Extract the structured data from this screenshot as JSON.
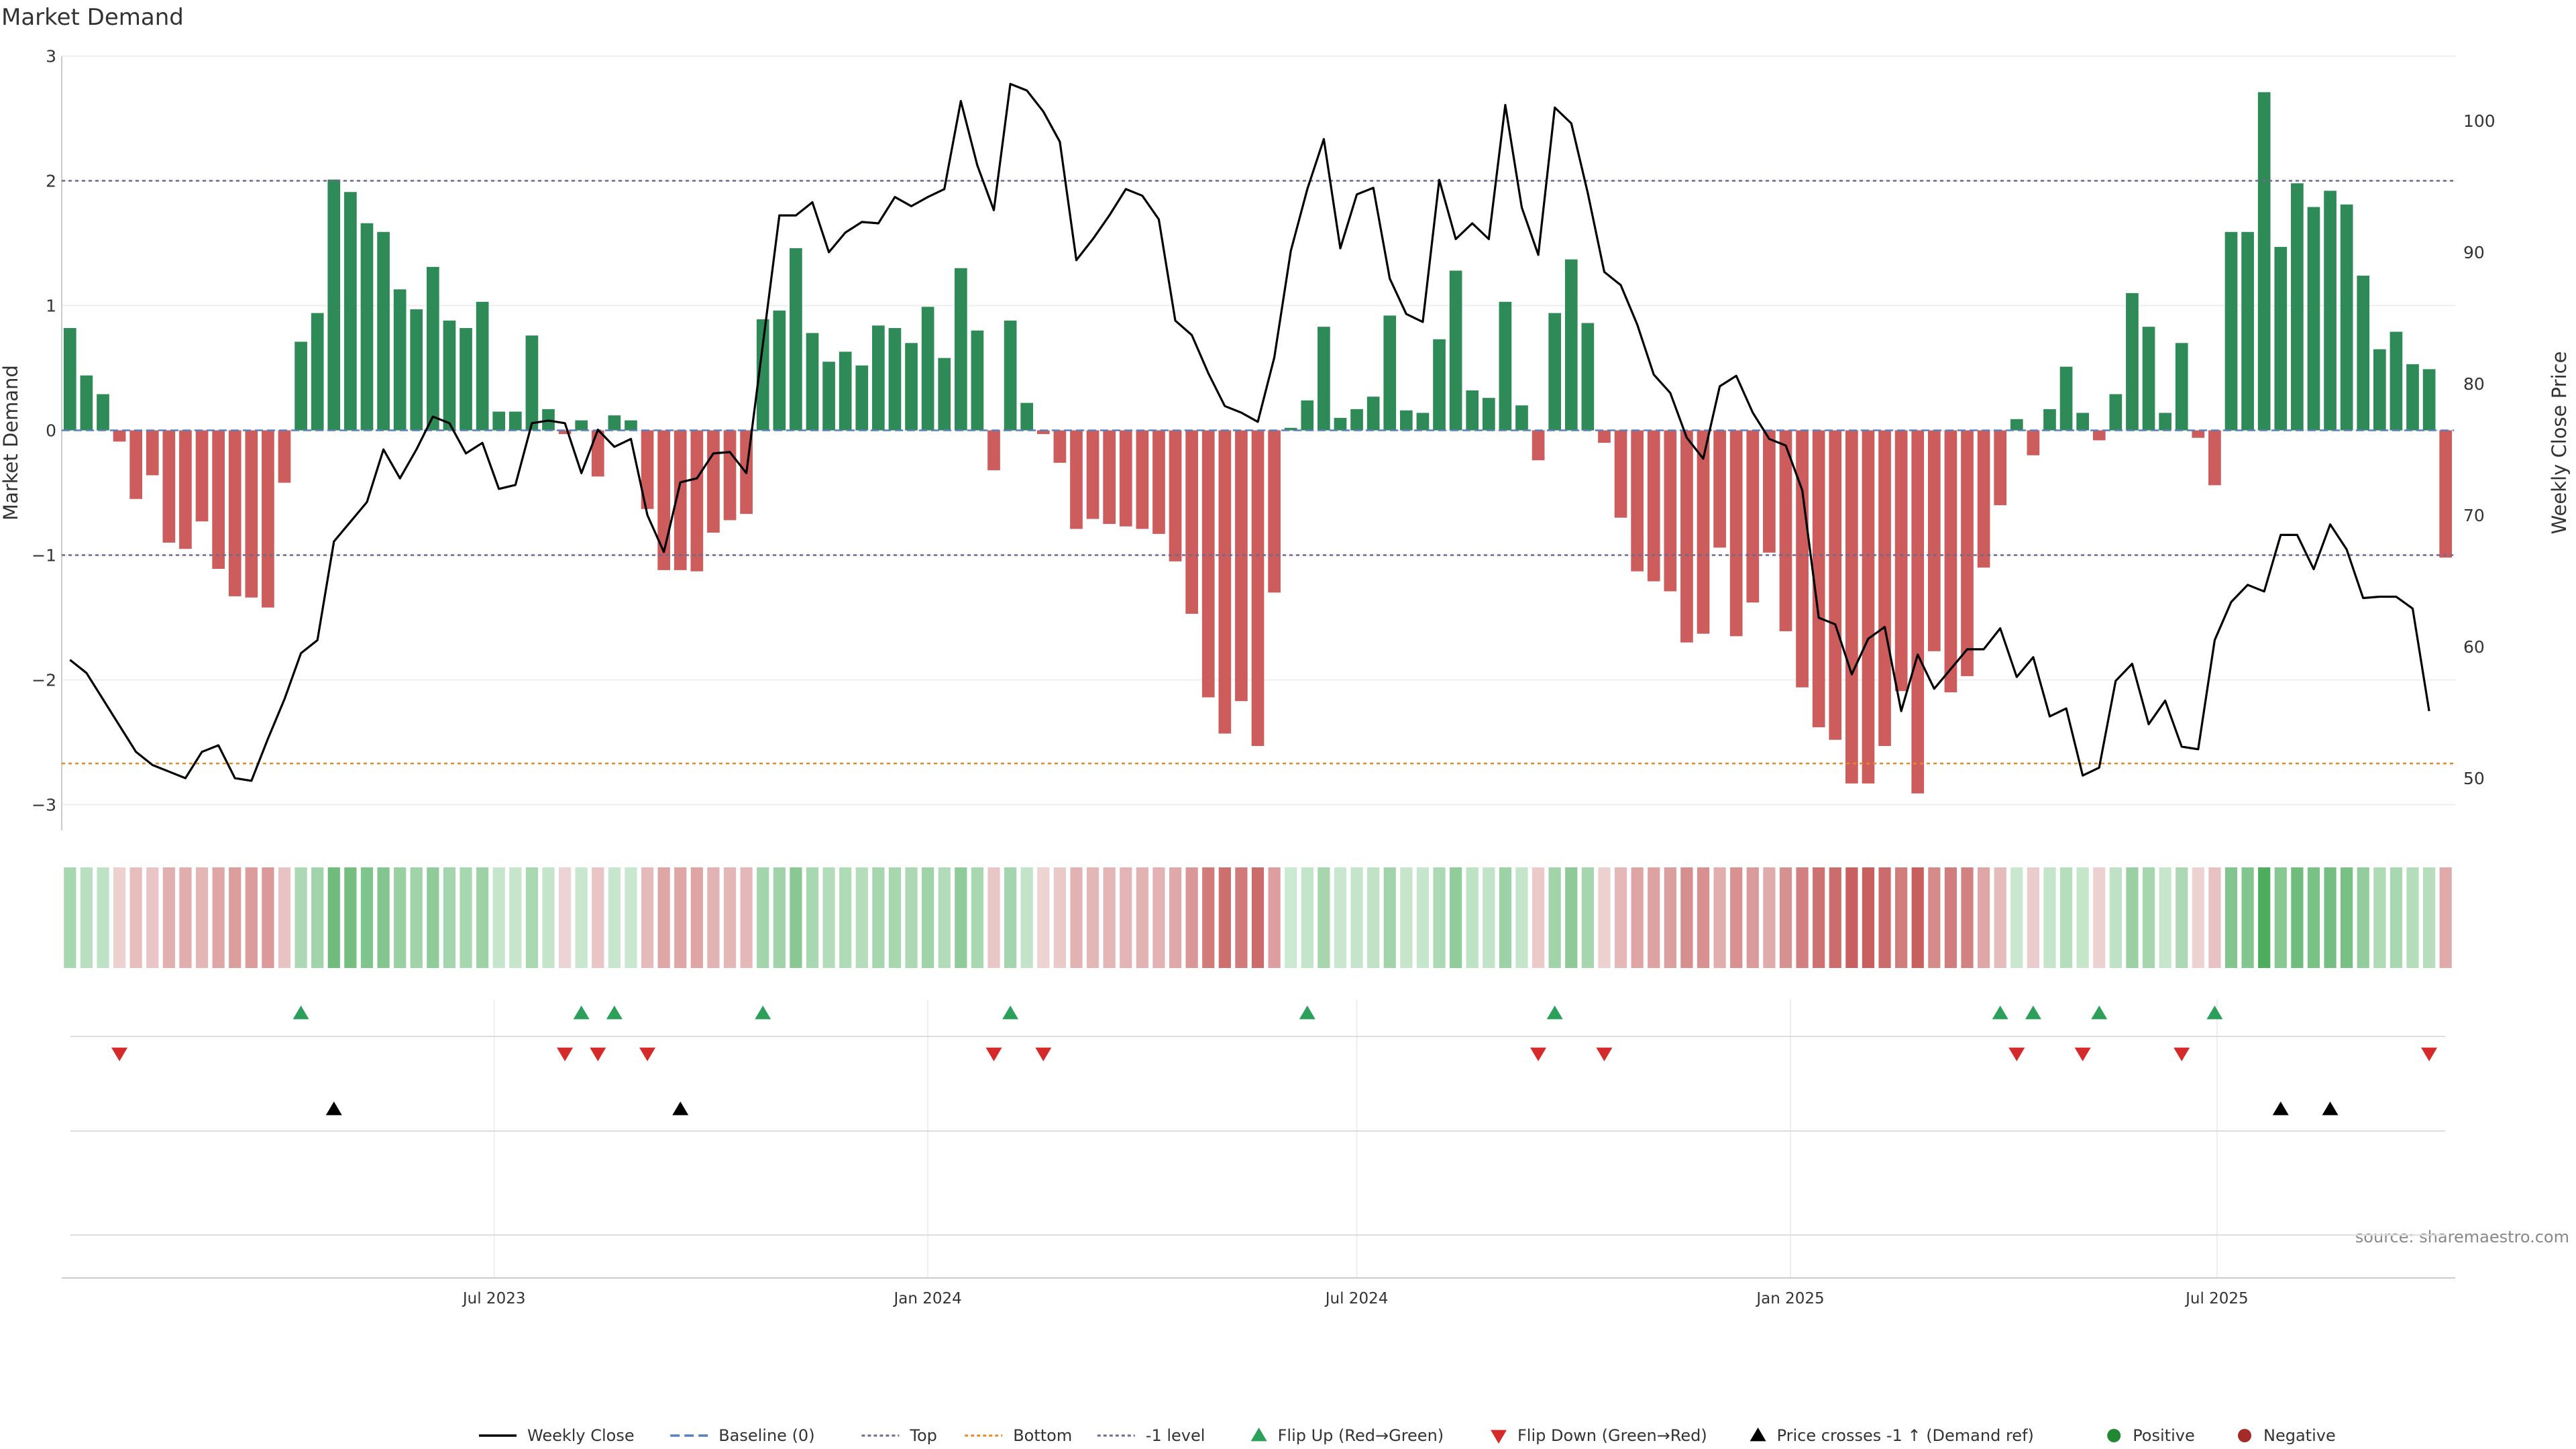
{
  "chart_data": {
    "type": "bar",
    "title": "Market Demand",
    "ylabel_left": "Market Demand",
    "ylabel_right": "Weekly Close Price",
    "ylim_left": [
      -3.3,
      3.3
    ],
    "ylim_right": [
      48,
      105
    ],
    "yticks_left": [
      3,
      2,
      1,
      0,
      -1,
      -2,
      -3
    ],
    "yticks_right": [
      100,
      90,
      80,
      70,
      60,
      50
    ],
    "reference_lines": {
      "top": 2,
      "level": -1,
      "baseline": 0,
      "bottom": -2.67
    },
    "x_range": [
      "2023-01-02",
      "2025-10-27"
    ],
    "x_ticks": [
      {
        "date": "2023-07-01",
        "label": "Jul 2023"
      },
      {
        "date": "2024-01-01",
        "label": "Jan 2024"
      },
      {
        "date": "2024-07-01",
        "label": "Jul 2024"
      },
      {
        "date": "2025-01-01",
        "label": "Jan 2025"
      },
      {
        "date": "2025-07-01",
        "label": "Jul 2025"
      }
    ],
    "demand": [
      0.82,
      0.44,
      0.29,
      -0.09,
      -0.55,
      -0.36,
      -0.9,
      -0.95,
      -0.73,
      -1.11,
      -1.33,
      -1.34,
      -1.42,
      -0.42,
      0.71,
      0.94,
      2.01,
      1.91,
      1.66,
      1.59,
      1.13,
      0.97,
      1.31,
      0.88,
      0.82,
      1.03,
      0.15,
      0.15,
      0.76,
      0.17,
      -0.03,
      0.08,
      -0.37,
      0.12,
      0.08,
      -0.63,
      -1.12,
      -1.12,
      -1.13,
      -0.82,
      -0.72,
      -0.67,
      0.89,
      0.96,
      1.46,
      0.78,
      0.55,
      0.63,
      0.52,
      0.84,
      0.82,
      0.7,
      0.99,
      0.58,
      1.3,
      0.8,
      -0.32,
      0.88,
      0.22,
      -0.03,
      -0.26,
      -0.79,
      -0.71,
      -0.75,
      -0.77,
      -0.79,
      -0.83,
      -1.05,
      -1.47,
      -2.14,
      -2.43,
      -2.17,
      -2.53,
      -1.3,
      0.02,
      0.24,
      0.83,
      0.1,
      0.17,
      0.27,
      0.92,
      0.16,
      0.14,
      0.73,
      1.28,
      0.32,
      0.26,
      1.03,
      0.2,
      -0.24,
      0.94,
      1.37,
      0.86,
      -0.1,
      -0.7,
      -1.13,
      -1.21,
      -1.29,
      -1.7,
      -1.63,
      -0.94,
      -1.65,
      -1.38,
      -0.98,
      -1.61,
      -2.06,
      -2.38,
      -2.48,
      -2.83,
      -2.83,
      -2.53,
      -2.09,
      -2.91,
      -1.77,
      -2.1,
      -1.97,
      -1.1,
      -0.6,
      0.09,
      -0.2,
      0.17,
      0.51,
      0.14,
      -0.08,
      0.29,
      1.1,
      0.83,
      0.14,
      0.7,
      -0.06,
      -0.44,
      1.59,
      1.59,
      2.71,
      1.47,
      1.98,
      1.79,
      1.92,
      1.81,
      1.24,
      0.65,
      0.79,
      0.53,
      0.49,
      -1.02
    ],
    "weekly_close": [
      59,
      58,
      56,
      54,
      52,
      51,
      50.5,
      50,
      52,
      52.5,
      50,
      49.8,
      53,
      56,
      59.5,
      60.5,
      68,
      69.5,
      71,
      75,
      72.8,
      75,
      77.5,
      77,
      74.7,
      75.5,
      72,
      72.3,
      77,
      77.2,
      77,
      73.2,
      76.5,
      75.2,
      75.8,
      70,
      67.2,
      72.5,
      72.8,
      74.7,
      74.8,
      73.2,
      83,
      92.8,
      92.8,
      93.8,
      90,
      91.5,
      92.3,
      92.2,
      94.2,
      93.5,
      94.2,
      94.8,
      101.5,
      96.6,
      93.2,
      102.8,
      102.3,
      100.7,
      98.4,
      89.4,
      91,
      92.8,
      94.8,
      94.3,
      92.5,
      84.8,
      83.7,
      80.8,
      78.3,
      77.8,
      77.1,
      82,
      90.1,
      94.8,
      98.6,
      90.3,
      94.4,
      94.9,
      88,
      85.3,
      84.7,
      95.5,
      91,
      92.2,
      91,
      101.2,
      93.4,
      89.8,
      101,
      99.8,
      94.5,
      88.5,
      87.5,
      84.5,
      80.7,
      79.3,
      75.9,
      74.3,
      79.8,
      80.6,
      77.8,
      75.8,
      75.3,
      71.9,
      62.2,
      61.7,
      57.9,
      60.6,
      61.5,
      55.1,
      59.4,
      56.8,
      58.3,
      59.8,
      59.8,
      61.4,
      57.7,
      59.2,
      54.7,
      55.3,
      50.2,
      50.8,
      57.4,
      58.7,
      54.1,
      55.9,
      52.4,
      52.2,
      60.5,
      63.4,
      64.7,
      64.2,
      68.5,
      68.5,
      65.9,
      69.3,
      67.4,
      63.7,
      63.8,
      63.8,
      62.9,
      55.1
    ],
    "flip_up_weeks": [
      14,
      31,
      33,
      42,
      57,
      75,
      90,
      117,
      119,
      123,
      130
    ],
    "flip_down_weeks": [
      3,
      30,
      32,
      35,
      56,
      59,
      89,
      93,
      118,
      122,
      128,
      143
    ],
    "price_cross_weeks": [
      16,
      37,
      134,
      137
    ],
    "legend": [
      {
        "label": "Weekly Close",
        "kind": "line",
        "color": "#000000"
      },
      {
        "label": "Baseline (0)",
        "kind": "dashed",
        "color": "#5b7fb8"
      },
      {
        "label": "Top",
        "kind": "dotted",
        "color": "#6e6a8e"
      },
      {
        "label": "Bottom",
        "kind": "dotted",
        "color": "#e6892a"
      },
      {
        "label": "-1 level",
        "kind": "dotted",
        "color": "#6e6a8e"
      },
      {
        "label": "Flip Up (Red→Green)",
        "kind": "triangle-up",
        "color": "#2ca05a"
      },
      {
        "label": "Flip Down (Green→Red)",
        "kind": "triangle-down",
        "color": "#d62a2a"
      },
      {
        "label": "Price crosses -1 ↑ (Demand ref)",
        "kind": "triangle-up",
        "color": "#000000"
      },
      {
        "label": "Positive",
        "kind": "circle",
        "color": "#228833"
      },
      {
        "label": "Negative",
        "kind": "circle",
        "color": "#a52a2a"
      }
    ],
    "colors": {
      "positive": "#2e8b57",
      "negative": "#cd5c5c",
      "price": "#000000"
    }
  },
  "source": "source: sharemaestro.com"
}
